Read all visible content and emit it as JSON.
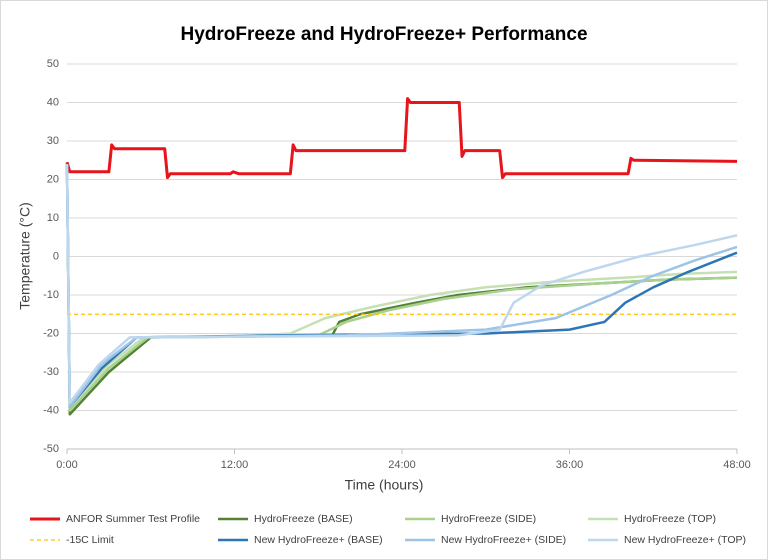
{
  "chart_data": {
    "type": "line",
    "title": "HydroFreeze and HydroFreeze+ Performance",
    "x_label": "Time (hours)",
    "y_label": "Temperature (°C)",
    "xlim": [
      0,
      48
    ],
    "xticks": [
      {
        "value": 0,
        "label": "0:00"
      },
      {
        "value": 12,
        "label": "12:00"
      },
      {
        "value": 24,
        "label": "24:00"
      },
      {
        "value": 36,
        "label": "36:00"
      },
      {
        "value": 48,
        "label": "48:00"
      }
    ],
    "ylim": [
      -50,
      50
    ],
    "yticks": [
      -50,
      -40,
      -30,
      -20,
      -10,
      0,
      10,
      20,
      30,
      40,
      50
    ],
    "grid": true,
    "legend": "bottom",
    "series": [
      {
        "name": "ANFOR Summer Test Profile",
        "color": "#e8141b",
        "width": 3,
        "x": [
          0,
          0.2,
          3.0,
          3.2,
          3.4,
          7.0,
          7.2,
          7.4,
          11.7,
          11.9,
          12.3,
          16.0,
          16.2,
          16.4,
          24.2,
          24.4,
          24.6,
          28.1,
          28.3,
          28.5,
          31.0,
          31.2,
          31.4,
          40.2,
          40.4,
          40.6,
          48
        ],
        "values": [
          24.5,
          22,
          22,
          29,
          28,
          28,
          20.5,
          21.5,
          21.5,
          22,
          21.5,
          21.5,
          29,
          27.5,
          27.5,
          41,
          40,
          40,
          26,
          27.5,
          27.5,
          20.5,
          21.5,
          21.5,
          25.5,
          25,
          24.7
        ]
      },
      {
        "name": "HydroFreeze (BASE)",
        "color": "#548235",
        "width": 2.5,
        "x": [
          0,
          0.2,
          3,
          6,
          12,
          19,
          19.5,
          21,
          25,
          28,
          33,
          38,
          43,
          48
        ],
        "values": [
          24,
          -41,
          -30,
          -21,
          -20.8,
          -20.5,
          -17,
          -15,
          -12,
          -10,
          -8,
          -7,
          -6,
          -5.5
        ]
      },
      {
        "name": "HydroFreeze (SIDE)",
        "color": "#a9d18e",
        "width": 2.5,
        "x": [
          0,
          0.2,
          3,
          5.8,
          12,
          18,
          20,
          23,
          27,
          32,
          38,
          43,
          48
        ],
        "values": [
          24,
          -40,
          -29,
          -21,
          -20.8,
          -20.5,
          -17,
          -14,
          -11,
          -8.5,
          -7,
          -6,
          -5.5
        ]
      },
      {
        "name": "HydroFreeze (TOP)",
        "color": "#c5e0b4",
        "width": 2.5,
        "x": [
          0,
          0.2,
          3,
          5.5,
          12,
          16,
          18.5,
          22,
          26,
          30,
          35,
          40,
          44,
          48
        ],
        "values": [
          24,
          -39,
          -28,
          -21,
          -20.8,
          -20,
          -16,
          -13,
          -10,
          -8,
          -6.5,
          -5.5,
          -4.5,
          -4
        ]
      },
      {
        "name": "-15C Limit",
        "color": "#ffc000",
        "width": 1.2,
        "dashed": true,
        "x": [
          0,
          48
        ],
        "values": [
          -15,
          -15
        ]
      },
      {
        "name": "New HydroFreeze+ (BASE)",
        "color": "#2e75b6",
        "width": 2.5,
        "x": [
          0,
          0.2,
          2.5,
          5,
          15,
          30,
          36,
          38.5,
          40,
          42,
          44.5,
          48
        ],
        "values": [
          24,
          -39,
          -29,
          -21,
          -20.5,
          -20,
          -19,
          -17,
          -12,
          -8,
          -4,
          1
        ]
      },
      {
        "name": "New HydroFreeze+ (SIDE)",
        "color": "#9dc3e6",
        "width": 2.5,
        "x": [
          0,
          0.2,
          2.5,
          5,
          20,
          30,
          35,
          39,
          42,
          45,
          48
        ],
        "values": [
          24,
          -39,
          -28,
          -21,
          -20.5,
          -19,
          -16,
          -10,
          -5,
          -1,
          2.5
        ]
      },
      {
        "name": "New HydroFreeze+ (TOP)",
        "color": "#bdd7ee",
        "width": 2.5,
        "x": [
          0,
          0.2,
          2.3,
          4.5,
          28,
          31,
          32,
          34,
          37,
          41,
          45,
          48
        ],
        "values": [
          24,
          -38,
          -28,
          -21,
          -20.5,
          -19,
          -12,
          -7.5,
          -4,
          0,
          3,
          5.5
        ]
      }
    ]
  }
}
